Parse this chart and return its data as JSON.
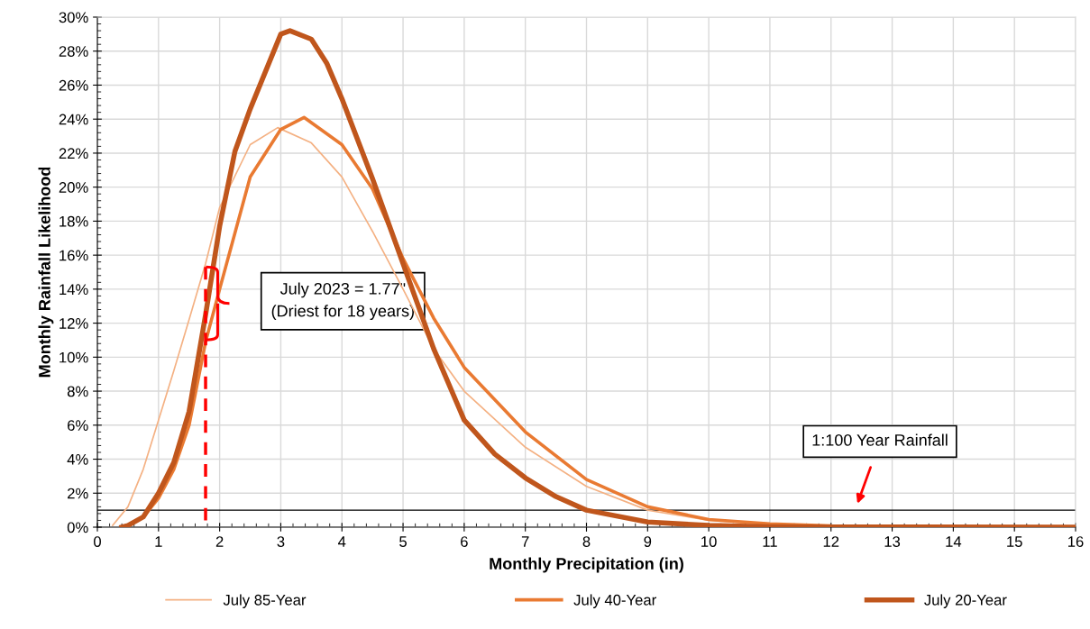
{
  "chart_data": {
    "type": "line",
    "xlabel": "Monthly Precipitation (in)",
    "ylabel": "Monthly Rainfall Likelihood",
    "xlim": [
      0,
      16
    ],
    "xticks": [
      0,
      1,
      2,
      3,
      4,
      5,
      6,
      7,
      8,
      9,
      10,
      11,
      12,
      13,
      14,
      15,
      16
    ],
    "ylim": [
      0,
      30
    ],
    "yticks": [
      {
        "value": 0,
        "label": "0%"
      },
      {
        "value": 2,
        "label": "2%"
      },
      {
        "value": 4,
        "label": "4%"
      },
      {
        "value": 6,
        "label": "6%"
      },
      {
        "value": 8,
        "label": "8%"
      },
      {
        "value": 10,
        "label": "10%"
      },
      {
        "value": 12,
        "label": "12%"
      },
      {
        "value": 14,
        "label": "14%"
      },
      {
        "value": 16,
        "label": "16%"
      },
      {
        "value": 18,
        "label": "18%"
      },
      {
        "value": 20,
        "label": "20%"
      },
      {
        "value": 22,
        "label": "22%"
      },
      {
        "value": 24,
        "label": "24%"
      },
      {
        "value": 26,
        "label": "26%"
      },
      {
        "value": 28,
        "label": "28%"
      },
      {
        "value": 30,
        "label": "30%"
      }
    ],
    "grid": true,
    "legend": "bottom",
    "marker": "none",
    "line_style": "solid",
    "series": [
      {
        "name": "July 85-Year",
        "color": "#f4b183",
        "x": [
          0.25,
          0.5,
          0.75,
          1,
          1.25,
          1.5,
          1.77,
          2,
          2.5,
          2.95,
          3.5,
          4,
          4.5,
          5,
          5.5,
          6,
          7,
          8,
          9,
          10,
          11,
          12
        ],
        "values": [
          0.1,
          1.2,
          3.4,
          6.3,
          9.2,
          12.2,
          15.5,
          18.8,
          22.5,
          23.5,
          22.6,
          20.6,
          17.4,
          14.0,
          10.5,
          8.0,
          4.7,
          2.4,
          1.0,
          0.4,
          0.15,
          0.06
        ]
      },
      {
        "name": "July 40-Year",
        "color": "#e97a32",
        "x": [
          0.4,
          0.5,
          0.75,
          1,
          1.25,
          1.5,
          1.77,
          2,
          2.5,
          3,
          3.38,
          4,
          4.5,
          5,
          5.5,
          6,
          7,
          8,
          9,
          10,
          11,
          12,
          13,
          14,
          16
        ],
        "values": [
          0,
          0.1,
          0.6,
          1.7,
          3.4,
          6.0,
          10.9,
          14.0,
          20.6,
          23.4,
          24.1,
          22.5,
          19.9,
          15.8,
          12.3,
          9.4,
          5.6,
          2.8,
          1.2,
          0.45,
          0.2,
          0.07,
          0.03,
          0.01,
          0
        ]
      },
      {
        "name": "July 20-Year",
        "color": "#c0561c",
        "x": [
          0.4,
          0.5,
          0.75,
          1,
          1.25,
          1.5,
          1.77,
          2,
          2.25,
          2.5,
          3,
          3.15,
          3.5,
          3.75,
          4,
          4.5,
          5,
          5.5,
          6,
          6.5,
          7,
          7.5,
          8,
          9,
          10,
          11,
          12,
          16
        ],
        "values": [
          0,
          0.1,
          0.6,
          2.0,
          3.8,
          6.8,
          12.5,
          17.7,
          22.1,
          24.6,
          29.0,
          29.2,
          28.7,
          27.3,
          25.2,
          20.5,
          15.5,
          10.5,
          6.3,
          4.3,
          2.9,
          1.8,
          1.0,
          0.3,
          0.1,
          0.03,
          0.01,
          0
        ]
      },
      {
        "type": "line",
        "color": "#ff0000",
        "line_style": "dashed",
        "x": [
          1.77,
          1.77
        ],
        "values": [
          0,
          15.3
        ]
      }
    ],
    "ref_lines": [
      {
        "axis": "y",
        "value": 1,
        "color": "#000000"
      }
    ],
    "annotations": [
      "July 2023 = 1.77\"\n(Driest for 18 years)",
      "1:100 Year Rainfall"
    ]
  }
}
